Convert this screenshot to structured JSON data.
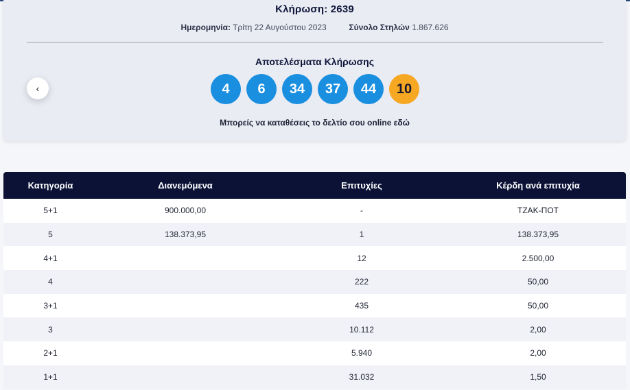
{
  "draw": {
    "title": "Κλήρωση: 2639",
    "date_label": "Ημερομηνία:",
    "date_value": "Τρίτη 22 Αυγούστου 2023",
    "columns_label": "Σύνολο Στηλών",
    "columns_value": "1.867.626",
    "results_title": "Αποτελέσματα Κλήρωσης",
    "numbers": [
      "4",
      "6",
      "34",
      "37",
      "44"
    ],
    "joker": "10",
    "online_text": "Μπορείς να καταθέσεις το δελτίο σου online",
    "online_link": "εδώ",
    "prev_glyph": "‹"
  },
  "colors": {
    "ball_blue": "#1a8fe0",
    "joker_orange": "#f7a823",
    "header_navy": "#0b1236"
  },
  "table": {
    "headers": [
      "Κατηγορία",
      "Διανεμόμενα",
      "Επιτυχίες",
      "Κέρδη ανά επιτυχία"
    ],
    "rows": [
      [
        "5+1",
        "900.000,00",
        "-",
        "ΤΖΑΚ-ΠΟΤ"
      ],
      [
        "5",
        "138.373,95",
        "1",
        "138.373,95"
      ],
      [
        "4+1",
        "",
        "12",
        "2.500,00"
      ],
      [
        "4",
        "",
        "222",
        "50,00"
      ],
      [
        "3+1",
        "",
        "435",
        "50,00"
      ],
      [
        "3",
        "",
        "10.112",
        "2,00"
      ],
      [
        "2+1",
        "",
        "5.940",
        "2,00"
      ],
      [
        "1+1",
        "",
        "31.032",
        "1,50"
      ]
    ]
  }
}
